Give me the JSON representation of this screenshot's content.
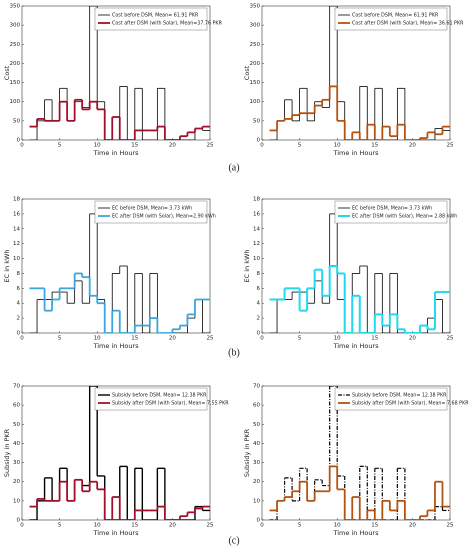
{
  "captions": [
    "(a)",
    "(b)",
    "(c)"
  ],
  "chart_data": [
    {
      "type": "line",
      "drawstyle": "steps",
      "xlabel": "Time in Hours",
      "ylabel": "Cost",
      "xlim": [
        0,
        25
      ],
      "xticks": [
        0,
        5,
        10,
        15,
        20,
        25
      ],
      "ylim": [
        0,
        350
      ],
      "yticks": [
        0,
        50,
        100,
        150,
        200,
        250,
        300,
        350
      ],
      "legend": "upper right",
      "x": [
        1,
        2,
        3,
        4,
        5,
        6,
        7,
        8,
        9,
        10,
        11,
        12,
        13,
        14,
        15,
        16,
        17,
        18,
        19,
        20,
        21,
        22,
        23,
        24
      ],
      "series": [
        {
          "name": "Cost before DSM, Mean= 61.91 PKR",
          "color": "#000000",
          "line_width": 0.8,
          "dash": "solid",
          "values": [
            0,
            50,
            105,
            50,
            135,
            50,
            100,
            85,
            350,
            100,
            0,
            0,
            140,
            0,
            135,
            0,
            0,
            135,
            0,
            0,
            0,
            0,
            30,
            25
          ]
        },
        {
          "name": "Cost after DSM (with Solar), Mean=37.76 PKR",
          "color": "#a0102a",
          "line_width": 1.8,
          "dash": "solid",
          "values": [
            35,
            55,
            50,
            50,
            100,
            50,
            105,
            80,
            100,
            80,
            0,
            60,
            0,
            0,
            25,
            25,
            25,
            35,
            0,
            0,
            10,
            20,
            30,
            35
          ]
        }
      ]
    },
    {
      "type": "line",
      "drawstyle": "steps",
      "xlabel": "Time in Hours",
      "ylabel": "Cost",
      "xlim": [
        0,
        25
      ],
      "xticks": [
        0,
        5,
        10,
        15,
        20,
        25
      ],
      "ylim": [
        0,
        350
      ],
      "yticks": [
        0,
        50,
        100,
        150,
        200,
        250,
        300,
        350
      ],
      "legend": "upper right",
      "x": [
        1,
        2,
        3,
        4,
        5,
        6,
        7,
        8,
        9,
        10,
        11,
        12,
        13,
        14,
        15,
        16,
        17,
        18,
        19,
        20,
        21,
        22,
        23,
        24
      ],
      "series": [
        {
          "name": "Cost before DSM, Mean= 61.91 PKR",
          "color": "#000000",
          "line_width": 0.8,
          "dash": "solid",
          "values": [
            0,
            50,
            105,
            50,
            135,
            50,
            100,
            85,
            350,
            100,
            0,
            0,
            140,
            0,
            135,
            0,
            0,
            135,
            0,
            0,
            0,
            0,
            30,
            25
          ]
        },
        {
          "name": "Cost after DSM (with Solar), Mean= 36.61 PKR",
          "color": "#b5520f",
          "line_width": 1.8,
          "dash": "solid",
          "values": [
            25,
            50,
            55,
            65,
            70,
            70,
            90,
            105,
            140,
            50,
            0,
            20,
            0,
            40,
            0,
            35,
            10,
            40,
            0,
            0,
            5,
            20,
            15,
            35
          ]
        }
      ]
    },
    {
      "type": "line",
      "drawstyle": "steps",
      "xlabel": "Time in Hours",
      "ylabel": "EC in kWh",
      "xlim": [
        0,
        25
      ],
      "xticks": [
        0,
        5,
        10,
        15,
        20,
        25
      ],
      "ylim": [
        0,
        18
      ],
      "yticks": [
        0,
        2,
        4,
        6,
        8,
        10,
        12,
        14,
        16,
        18
      ],
      "legend": "upper right",
      "x": [
        1,
        2,
        3,
        4,
        5,
        6,
        7,
        8,
        9,
        10,
        11,
        12,
        13,
        14,
        15,
        16,
        17,
        18,
        19,
        20,
        21,
        22,
        23,
        24
      ],
      "series": [
        {
          "name": "EC before DSM, Mean= 3.73 kWh",
          "color": "#000000",
          "line_width": 0.8,
          "dash": "solid",
          "values": [
            0,
            4.5,
            4.5,
            5.5,
            5.5,
            4,
            7,
            4,
            16,
            4.5,
            0,
            8,
            9,
            0,
            8,
            0,
            8,
            0,
            0,
            0,
            0,
            2,
            4.5,
            0
          ]
        },
        {
          "name": "EC after DSM (with Solar), Mean=2.90 kWh",
          "color": "#3aa6dd",
          "line_width": 1.8,
          "dash": "solid",
          "values": [
            6,
            6,
            3,
            4.5,
            6,
            6,
            8,
            7.5,
            5,
            4,
            0,
            3,
            0,
            0,
            1,
            1,
            2,
            0,
            0,
            0.5,
            1,
            2.5,
            4.5,
            4.5
          ]
        }
      ]
    },
    {
      "type": "line",
      "drawstyle": "steps",
      "xlabel": "Time in Hours",
      "ylabel": "EC in kWh",
      "xlim": [
        0,
        25
      ],
      "xticks": [
        0,
        5,
        10,
        15,
        20,
        25
      ],
      "ylim": [
        0,
        18
      ],
      "yticks": [
        0,
        2,
        4,
        6,
        8,
        10,
        12,
        14,
        16,
        18
      ],
      "legend": "upper right",
      "x": [
        1,
        2,
        3,
        4,
        5,
        6,
        7,
        8,
        9,
        10,
        11,
        12,
        13,
        14,
        15,
        16,
        17,
        18,
        19,
        20,
        21,
        22,
        23,
        24
      ],
      "series": [
        {
          "name": "EC before DSM, Mean= 3.73 kWh",
          "color": "#000000",
          "line_width": 0.8,
          "dash": "solid",
          "values": [
            0,
            4.5,
            4.5,
            5.5,
            5.5,
            4,
            7,
            4,
            16,
            4.5,
            0,
            8,
            9,
            0,
            8,
            0,
            8,
            0,
            0,
            0,
            0,
            2,
            4.5,
            0
          ]
        },
        {
          "name": "EC after DSM (with Solar), Mean= 2.88 kWh",
          "color": "#22d8ee",
          "line_width": 2,
          "dash": "solid",
          "values": [
            4.5,
            4.5,
            6,
            6,
            3,
            6,
            8.5,
            5,
            9,
            8,
            0,
            5,
            0,
            0,
            2.5,
            1,
            2.5,
            0.5,
            0,
            0,
            1,
            0.5,
            5.5,
            5.5
          ]
        }
      ]
    },
    {
      "type": "line",
      "drawstyle": "steps",
      "xlabel": "Time in Hours",
      "ylabel": "Subsidy in PKR",
      "xlim": [
        0,
        25
      ],
      "xticks": [
        0,
        5,
        10,
        15,
        20,
        25
      ],
      "ylim": [
        0,
        70
      ],
      "yticks": [
        0,
        10,
        20,
        30,
        40,
        50,
        60,
        70
      ],
      "legend": "upper right",
      "x": [
        1,
        2,
        3,
        4,
        5,
        6,
        7,
        8,
        9,
        10,
        11,
        12,
        13,
        14,
        15,
        16,
        17,
        18,
        19,
        20,
        21,
        22,
        23,
        24
      ],
      "series": [
        {
          "name": "Subsidy before DSM, Mean= 12.38 PKR",
          "color": "#000000",
          "line_width": 1.4,
          "dash": "solid",
          "values": [
            0,
            10,
            22,
            10,
            27,
            10,
            21,
            18,
            70,
            23,
            0,
            0,
            28,
            0,
            27,
            0,
            0,
            27,
            0,
            0,
            0,
            0,
            7,
            5
          ]
        },
        {
          "name": "Subsidy after DSM (with Solar), Mean= 7.55 PKR",
          "color": "#a0102a",
          "line_width": 1.8,
          "dash": "solid",
          "values": [
            7,
            11,
            10,
            10,
            20,
            10,
            21,
            15,
            20,
            16,
            0,
            12,
            0,
            0,
            5,
            5,
            5,
            7,
            0,
            0,
            2,
            4,
            6,
            7
          ]
        }
      ]
    },
    {
      "type": "line",
      "drawstyle": "steps",
      "xlabel": "Time in Hours",
      "ylabel": "Subsidy in PKR",
      "xlim": [
        0,
        25
      ],
      "xticks": [
        0,
        5,
        10,
        15,
        20,
        25
      ],
      "ylim": [
        0,
        70
      ],
      "yticks": [
        0,
        10,
        20,
        30,
        40,
        50,
        60,
        70
      ],
      "legend": "upper right",
      "x": [
        1,
        2,
        3,
        4,
        5,
        6,
        7,
        8,
        9,
        10,
        11,
        12,
        13,
        14,
        15,
        16,
        17,
        18,
        19,
        20,
        21,
        22,
        23,
        24
      ],
      "series": [
        {
          "name": "Subsidy before DSM, Mean= 12.38 PKR",
          "color": "#000000",
          "line_width": 1.2,
          "dash": "dashdot",
          "values": [
            0,
            10,
            22,
            10,
            27,
            10,
            21,
            18,
            70,
            23,
            0,
            0,
            28,
            0,
            27,
            0,
            0,
            27,
            0,
            0,
            0,
            0,
            7,
            5
          ]
        },
        {
          "name": "Subsidy after DSM (with Solar), Mean= 7.68 PKR",
          "color": "#b5520f",
          "line_width": 1.8,
          "dash": "solid",
          "values": [
            5,
            10,
            12,
            15,
            20,
            10,
            15,
            15,
            28,
            16,
            0,
            12,
            0,
            5,
            0,
            10,
            5,
            10,
            0,
            0,
            2,
            5,
            20,
            7
          ]
        }
      ]
    }
  ]
}
